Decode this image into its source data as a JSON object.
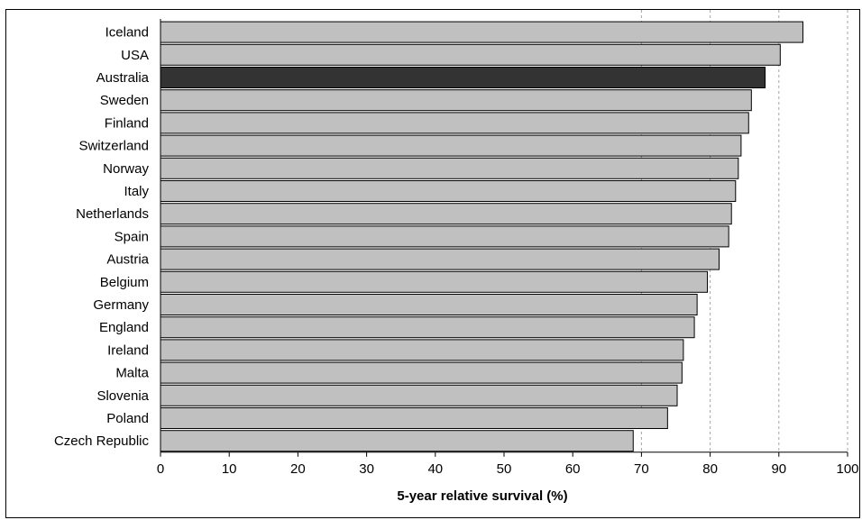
{
  "chart_data": {
    "type": "bar",
    "orientation": "horizontal",
    "title": "",
    "xlabel": "5-year relative survival (%)",
    "ylabel": "",
    "xlim": [
      0,
      100
    ],
    "xticks": [
      0,
      10,
      20,
      30,
      40,
      50,
      60,
      70,
      80,
      90,
      100
    ],
    "grid": "vertical dashed at 70, 80, 90, 100",
    "legend": "none",
    "categories": [
      "Iceland",
      "USA",
      "Australia",
      "Sweden",
      "Finland",
      "Switzerland",
      "Norway",
      "Italy",
      "Netherlands",
      "Spain",
      "Austria",
      "Belgium",
      "Germany",
      "England",
      "Ireland",
      "Malta",
      "Slovenia",
      "Poland",
      "Czech Republic"
    ],
    "values": [
      93.5,
      90.2,
      88.0,
      86.0,
      85.6,
      84.5,
      84.1,
      83.7,
      83.1,
      82.7,
      81.3,
      79.6,
      78.1,
      77.7,
      76.1,
      75.9,
      75.2,
      73.8,
      68.8
    ],
    "highlight": "Australia",
    "colors": {
      "bar": "#c0c0c0",
      "highlight_bar": "#333333",
      "bar_stroke": "#000000",
      "grid": "#a6a6a6"
    }
  }
}
